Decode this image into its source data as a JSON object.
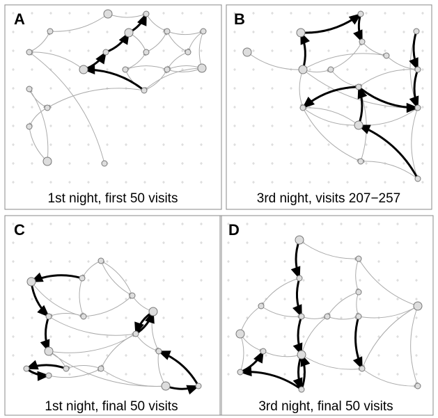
{
  "panels": [
    {
      "letter": "A",
      "caption": "1st night, first 50 visits"
    },
    {
      "letter": "B",
      "caption": "3rd night, visits 207−257"
    },
    {
      "letter": "C",
      "caption": "1st night, final 50 visits"
    },
    {
      "letter": "D",
      "caption": "3rd night, final 50 visits"
    }
  ]
}
